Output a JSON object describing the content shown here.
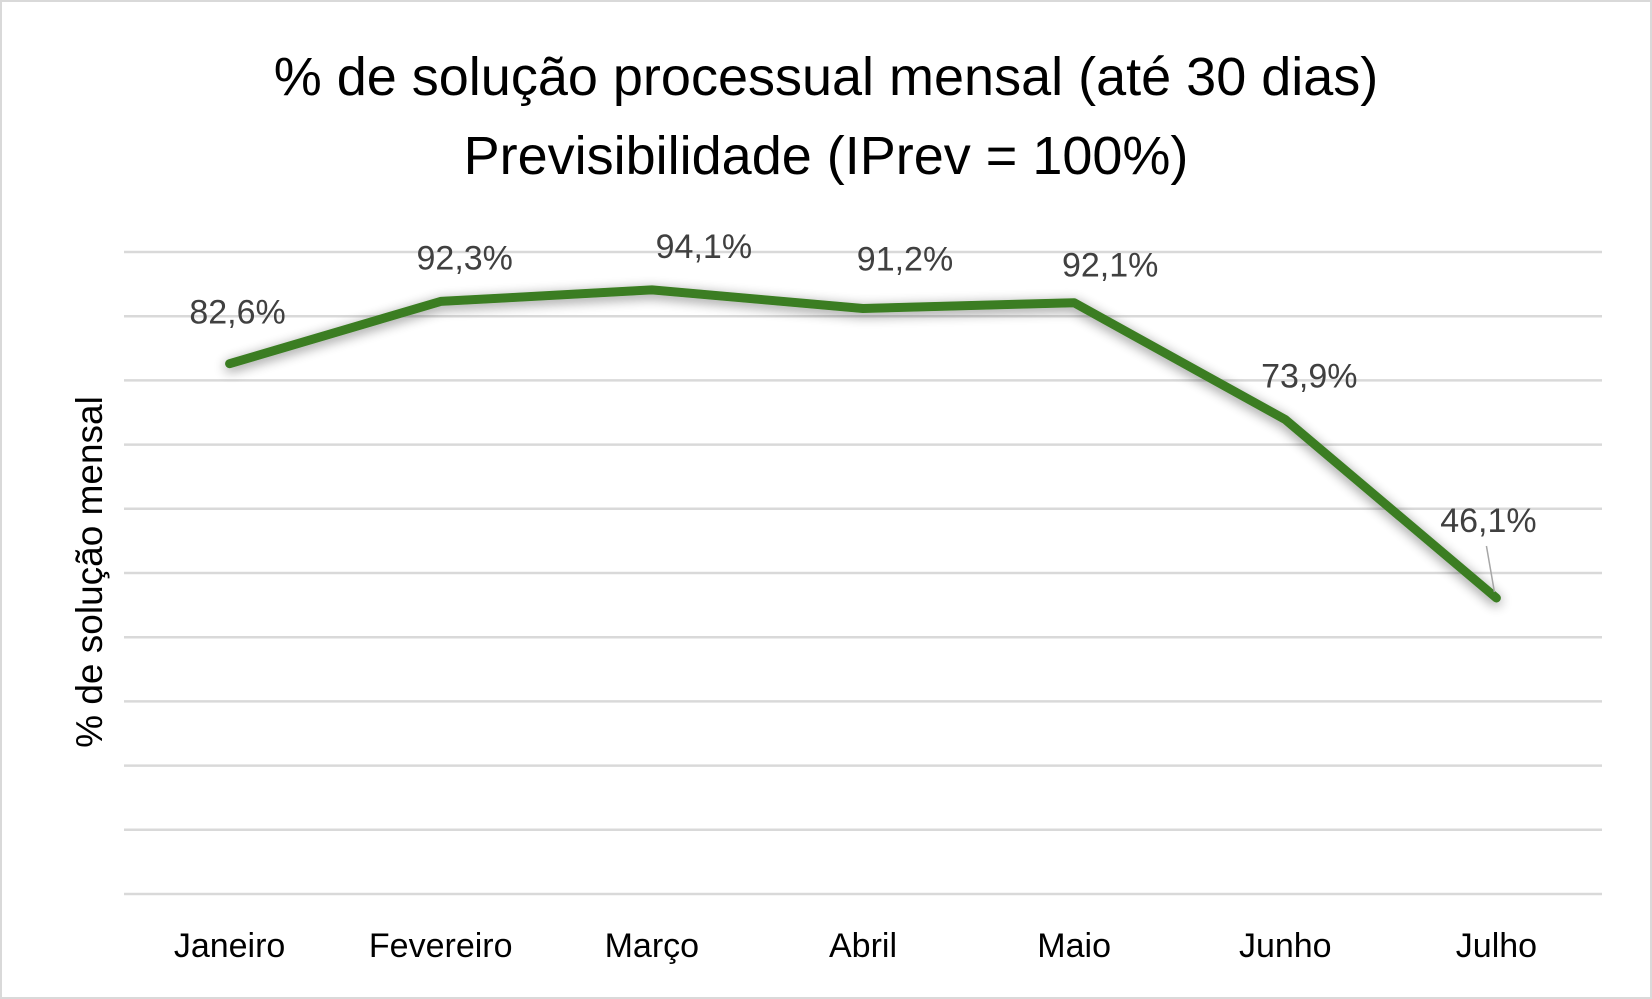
{
  "chart_data": {
    "type": "line",
    "title": "% de solução processual mensal (até 30 dias)",
    "subtitle": "Previsibilidade (IPrev = 100%)",
    "xlabel": "",
    "ylabel": "% de solução mensal",
    "categories": [
      "Janeiro",
      "Fevereiro",
      "Março",
      "Abril",
      "Maio",
      "Junho",
      "Julho"
    ],
    "series": [
      {
        "values": [
          82.6,
          92.3,
          94.1,
          91.2,
          92.1,
          73.9,
          46.1
        ],
        "labels": [
          "82,6%",
          "92,3%",
          "94,1%",
          "91,2%",
          "92,1%",
          "73,9%",
          "46,1%"
        ],
        "color": "#3a7d22"
      }
    ],
    "ylim": [
      0,
      100
    ],
    "y_tick_step": 10,
    "y_tick_labels_visible": false,
    "grid": true,
    "legend": "none",
    "colors": {
      "line": "#3a7d22",
      "grid": "#d9d9d9",
      "data_label": "#404040",
      "text": "#000000"
    }
  }
}
